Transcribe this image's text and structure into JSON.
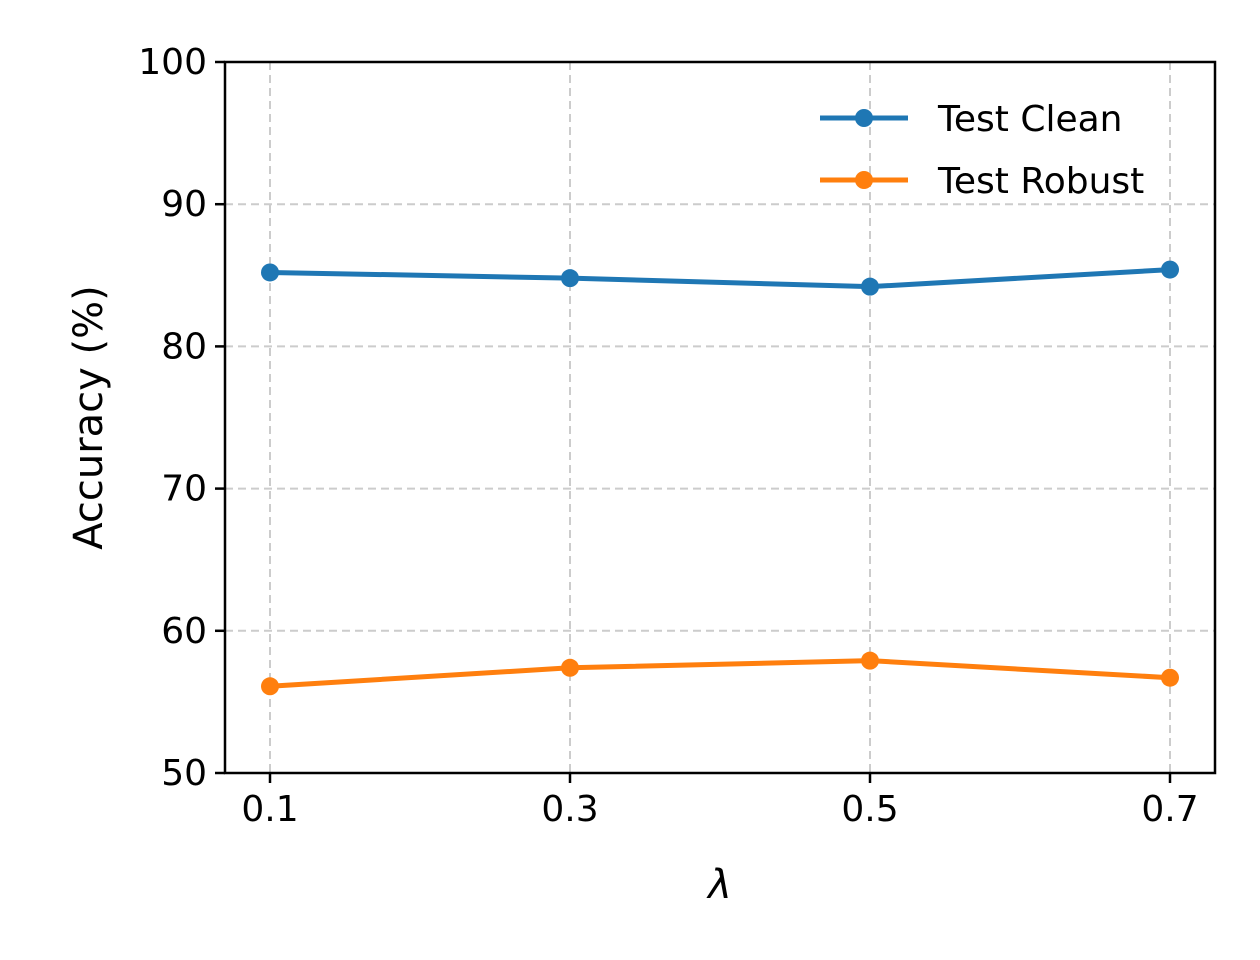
{
  "chart_data": {
    "type": "line",
    "title": "",
    "xlabel": "λ",
    "ylabel": "Accuracy (%)",
    "x": [
      0.1,
      0.3,
      0.5,
      0.7
    ],
    "x_tick_labels": [
      "0.1",
      "0.3",
      "0.5",
      "0.7"
    ],
    "y_ticks": [
      50,
      60,
      70,
      80,
      90,
      100
    ],
    "y_tick_labels": [
      "50",
      "60",
      "70",
      "80",
      "90",
      "100"
    ],
    "ylim": [
      50,
      100
    ],
    "xlim": [
      0.07,
      0.73
    ],
    "grid": true,
    "legend_position": "top-right",
    "series": [
      {
        "name": "Test Clean",
        "color": "#1f77b4",
        "values": [
          85.2,
          84.8,
          84.2,
          85.4
        ]
      },
      {
        "name": "Test Robust",
        "color": "#ff7f0e",
        "values": [
          56.1,
          57.4,
          57.9,
          56.7
        ]
      }
    ]
  }
}
